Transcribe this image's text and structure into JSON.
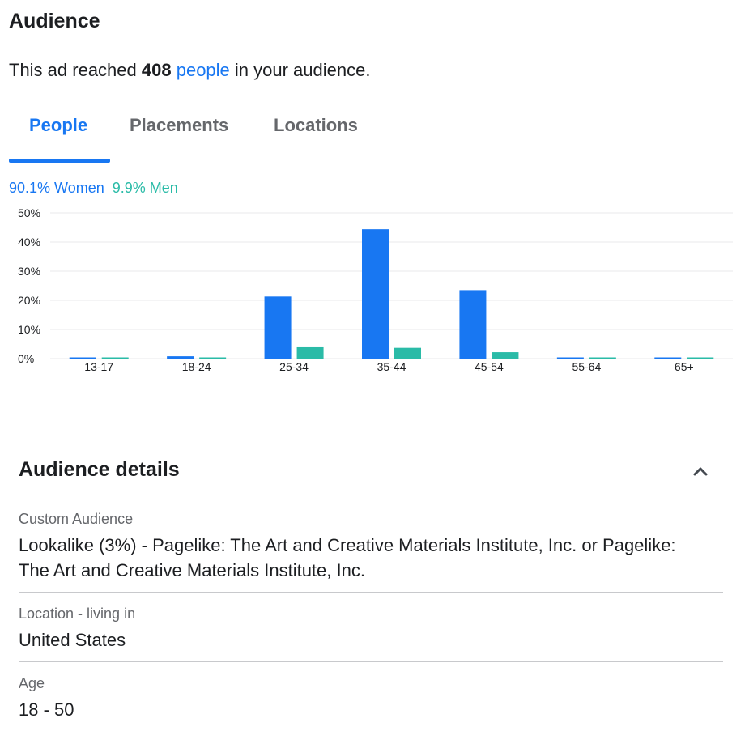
{
  "header": {
    "title": "Audience"
  },
  "reach": {
    "prefix": "This ad reached ",
    "count": "408",
    "link_text": "people",
    "suffix": " in your audience."
  },
  "tabs": [
    {
      "label": "People",
      "active": true
    },
    {
      "label": "Placements",
      "active": false
    },
    {
      "label": "Locations",
      "active": false
    }
  ],
  "gender": {
    "women_label": "90.1% Women",
    "men_label": "9.9% Men"
  },
  "colors": {
    "accent": "#1877f2",
    "women": "#1877f2",
    "men": "#2abba7"
  },
  "chart_data": {
    "type": "bar",
    "categories": [
      "13-17",
      "18-24",
      "25-34",
      "35-44",
      "45-54",
      "55-64",
      "65+"
    ],
    "series": [
      {
        "name": "Women",
        "values": [
          0.3,
          0.8,
          21.3,
          44.4,
          23.5,
          0.3,
          0.3
        ]
      },
      {
        "name": "Men",
        "values": [
          0.3,
          0.3,
          3.9,
          3.7,
          2.2,
          0.3,
          0.3
        ]
      }
    ],
    "ylim": [
      0,
      50
    ],
    "yticks": [
      "0%",
      "10%",
      "20%",
      "30%",
      "40%",
      "50%"
    ],
    "grid": true
  },
  "details": {
    "title": "Audience details",
    "items": [
      {
        "label": "Custom Audience",
        "value": "Lookalike (3%) - Pagelike: The Art and Creative Materials Institute, Inc. or Pagelike: The Art and Creative Materials Institute, Inc."
      },
      {
        "label": "Location - living in",
        "value": "United States"
      },
      {
        "label": "Age",
        "value": "18 - 50"
      }
    ]
  }
}
